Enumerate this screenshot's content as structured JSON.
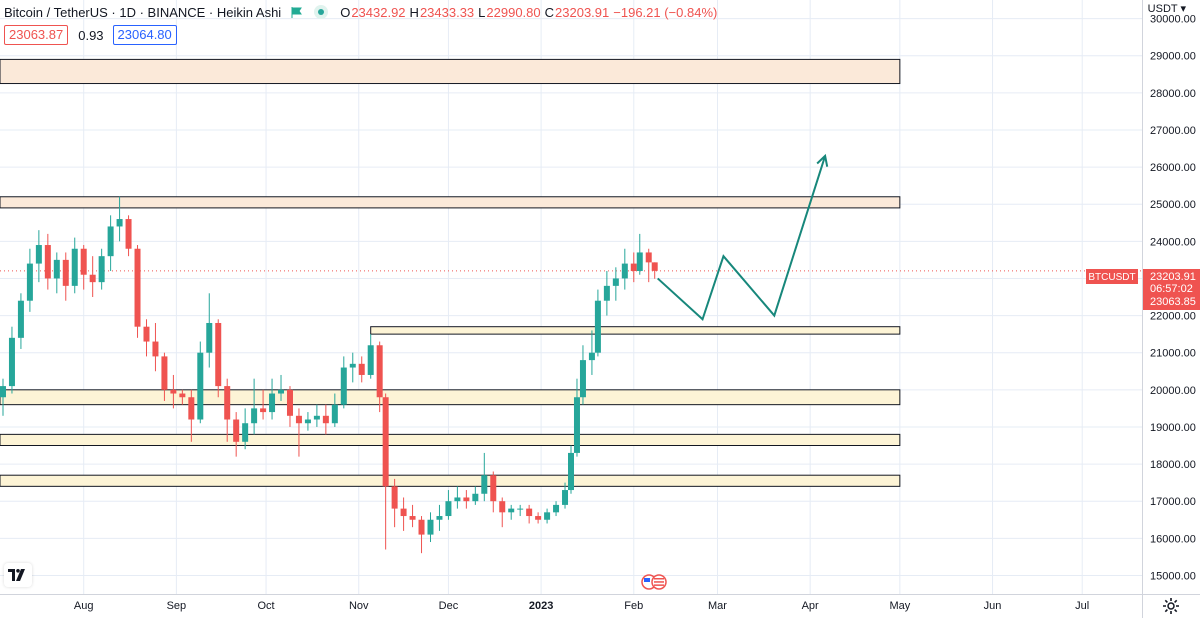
{
  "header": {
    "title": "Bitcoin / TetherUS · 1D · BINANCE · Heikin Ashi",
    "ohlc": [
      {
        "key": "O",
        "value": "23432.92"
      },
      {
        "key": "H",
        "value": "23433.33"
      },
      {
        "key": "L",
        "value": "22990.80"
      },
      {
        "key": "C",
        "value": "23203.91"
      }
    ],
    "change": "−196.21 (−0.84%)",
    "bid": "23063.87",
    "spread": "0.93",
    "ask": "23064.80"
  },
  "price_axis": {
    "currency": "USDT ▾",
    "symbol_tag": "BTCUSDT",
    "last_price": "23203.91",
    "countdown": "06:57:02",
    "second_price": "23063.85"
  },
  "colors": {
    "up": "#26a69a",
    "down": "#ef5350",
    "resistance_zone": "#fbe9d9",
    "support_zone": "#fdf4d6",
    "projection": "#17877b",
    "grid": "#e6ecf5",
    "label_bg": "#ef5350"
  },
  "icons": [
    "tradingview-logo-icon",
    "gear-icon",
    "economic-event-icon",
    "flag-icon",
    "live-dot-icon"
  ],
  "chart_data": {
    "type": "candlestick",
    "style": "Heikin Ashi",
    "symbol": "Bitcoin / TetherUS",
    "interval": "1D",
    "exchange": "BINANCE",
    "y_range": [
      14500,
      30500
    ],
    "y_ticks": [
      15000,
      16000,
      17000,
      18000,
      19000,
      20000,
      21000,
      22000,
      23000,
      24000,
      25000,
      26000,
      27000,
      28000,
      29000,
      30000
    ],
    "y_tick_labels": [
      "15000.00",
      "16000.00",
      "17000.00",
      "18000.00",
      "19000.00",
      "20000.00",
      "21000.00",
      "22000.00",
      "23000.00",
      "24000.00",
      "25000.00",
      "26000.00",
      "27000.00",
      "28000.00",
      "29000.00",
      "30000.00"
    ],
    "x_range": [
      "2022-07-04",
      "2023-07-21"
    ],
    "x_ticks": [
      {
        "date": "2022-08-01",
        "label": "Aug"
      },
      {
        "date": "2022-09-01",
        "label": "Sep"
      },
      {
        "date": "2022-10-01",
        "label": "Oct"
      },
      {
        "date": "2022-11-01",
        "label": "Nov"
      },
      {
        "date": "2022-12-01",
        "label": "Dec"
      },
      {
        "date": "2023-01-01",
        "label": "2023"
      },
      {
        "date": "2023-02-01",
        "label": "Feb"
      },
      {
        "date": "2023-03-01",
        "label": "Mar"
      },
      {
        "date": "2023-04-01",
        "label": "Apr"
      },
      {
        "date": "2023-05-01",
        "label": "May"
      },
      {
        "date": "2023-06-01",
        "label": "Jun"
      },
      {
        "date": "2023-07-01",
        "label": "Jul"
      }
    ],
    "last_price": 23203.91,
    "grid": true,
    "candles": [
      {
        "date": "2022-07-05",
        "o": 19800,
        "h": 20300,
        "l": 19300,
        "c": 20100
      },
      {
        "date": "2022-07-08",
        "o": 20100,
        "h": 21700,
        "l": 19900,
        "c": 21400
      },
      {
        "date": "2022-07-11",
        "o": 21400,
        "h": 22600,
        "l": 21100,
        "c": 22400
      },
      {
        "date": "2022-07-14",
        "o": 22400,
        "h": 23800,
        "l": 22100,
        "c": 23400
      },
      {
        "date": "2022-07-17",
        "o": 23400,
        "h": 24300,
        "l": 22900,
        "c": 23900
      },
      {
        "date": "2022-07-20",
        "o": 23900,
        "h": 24200,
        "l": 22700,
        "c": 23000
      },
      {
        "date": "2022-07-23",
        "o": 23000,
        "h": 23700,
        "l": 22600,
        "c": 23500
      },
      {
        "date": "2022-07-26",
        "o": 23500,
        "h": 23700,
        "l": 22400,
        "c": 22800
      },
      {
        "date": "2022-07-29",
        "o": 22800,
        "h": 24100,
        "l": 22600,
        "c": 23800
      },
      {
        "date": "2022-08-01",
        "o": 23800,
        "h": 23900,
        "l": 22700,
        "c": 23100
      },
      {
        "date": "2022-08-04",
        "o": 23100,
        "h": 23600,
        "l": 22500,
        "c": 22900
      },
      {
        "date": "2022-08-07",
        "o": 22900,
        "h": 23800,
        "l": 22700,
        "c": 23600
      },
      {
        "date": "2022-08-10",
        "o": 23600,
        "h": 24700,
        "l": 23200,
        "c": 24400
      },
      {
        "date": "2022-08-13",
        "o": 24400,
        "h": 25200,
        "l": 24000,
        "c": 24600
      },
      {
        "date": "2022-08-16",
        "o": 24600,
        "h": 24700,
        "l": 23600,
        "c": 23800
      },
      {
        "date": "2022-08-19",
        "o": 23800,
        "h": 23900,
        "l": 21400,
        "c": 21700
      },
      {
        "date": "2022-08-22",
        "o": 21700,
        "h": 21900,
        "l": 20900,
        "c": 21300
      },
      {
        "date": "2022-08-25",
        "o": 21300,
        "h": 21800,
        "l": 20500,
        "c": 20900
      },
      {
        "date": "2022-08-28",
        "o": 20900,
        "h": 21000,
        "l": 19700,
        "c": 20000
      },
      {
        "date": "2022-08-31",
        "o": 20000,
        "h": 20400,
        "l": 19500,
        "c": 19900
      },
      {
        "date": "2022-09-03",
        "o": 19900,
        "h": 20000,
        "l": 19600,
        "c": 19800
      },
      {
        "date": "2022-09-06",
        "o": 19800,
        "h": 20000,
        "l": 18600,
        "c": 19200
      },
      {
        "date": "2022-09-09",
        "o": 19200,
        "h": 21300,
        "l": 19100,
        "c": 21000
      },
      {
        "date": "2022-09-12",
        "o": 21000,
        "h": 22600,
        "l": 20600,
        "c": 21800
      },
      {
        "date": "2022-09-15",
        "o": 21800,
        "h": 21900,
        "l": 19800,
        "c": 20100
      },
      {
        "date": "2022-09-18",
        "o": 20100,
        "h": 20300,
        "l": 18600,
        "c": 19200
      },
      {
        "date": "2022-09-21",
        "o": 19200,
        "h": 19400,
        "l": 18200,
        "c": 18600
      },
      {
        "date": "2022-09-24",
        "o": 18600,
        "h": 19500,
        "l": 18400,
        "c": 19100
      },
      {
        "date": "2022-09-27",
        "o": 19100,
        "h": 20300,
        "l": 18800,
        "c": 19500
      },
      {
        "date": "2022-09-30",
        "o": 19500,
        "h": 20000,
        "l": 19200,
        "c": 19400
      },
      {
        "date": "2022-10-03",
        "o": 19400,
        "h": 20300,
        "l": 19200,
        "c": 19900
      },
      {
        "date": "2022-10-06",
        "o": 19900,
        "h": 20400,
        "l": 19700,
        "c": 20000
      },
      {
        "date": "2022-10-09",
        "o": 20000,
        "h": 20100,
        "l": 19000,
        "c": 19300
      },
      {
        "date": "2022-10-12",
        "o": 19300,
        "h": 19500,
        "l": 18200,
        "c": 19100
      },
      {
        "date": "2022-10-15",
        "o": 19100,
        "h": 19400,
        "l": 18900,
        "c": 19200
      },
      {
        "date": "2022-10-18",
        "o": 19200,
        "h": 19600,
        "l": 19000,
        "c": 19300
      },
      {
        "date": "2022-10-21",
        "o": 19300,
        "h": 19600,
        "l": 18800,
        "c": 19100
      },
      {
        "date": "2022-10-24",
        "o": 19100,
        "h": 19900,
        "l": 19000,
        "c": 19600
      },
      {
        "date": "2022-10-27",
        "o": 19600,
        "h": 20900,
        "l": 19500,
        "c": 20600
      },
      {
        "date": "2022-10-30",
        "o": 20600,
        "h": 21000,
        "l": 20200,
        "c": 20700
      },
      {
        "date": "2022-11-02",
        "o": 20700,
        "h": 20900,
        "l": 20200,
        "c": 20400
      },
      {
        "date": "2022-11-05",
        "o": 20400,
        "h": 21500,
        "l": 20300,
        "c": 21200
      },
      {
        "date": "2022-11-08",
        "o": 21200,
        "h": 21300,
        "l": 19400,
        "c": 19800
      },
      {
        "date": "2022-11-10",
        "o": 19800,
        "h": 19900,
        "l": 15700,
        "c": 17400
      },
      {
        "date": "2022-11-13",
        "o": 17400,
        "h": 17600,
        "l": 16300,
        "c": 16800
      },
      {
        "date": "2022-11-16",
        "o": 16800,
        "h": 17100,
        "l": 16200,
        "c": 16600
      },
      {
        "date": "2022-11-19",
        "o": 16600,
        "h": 16900,
        "l": 16300,
        "c": 16500
      },
      {
        "date": "2022-11-22",
        "o": 16500,
        "h": 16600,
        "l": 15600,
        "c": 16100
      },
      {
        "date": "2022-11-25",
        "o": 16100,
        "h": 16700,
        "l": 15900,
        "c": 16500
      },
      {
        "date": "2022-11-28",
        "o": 16500,
        "h": 16900,
        "l": 16200,
        "c": 16600
      },
      {
        "date": "2022-12-01",
        "o": 16600,
        "h": 17300,
        "l": 16500,
        "c": 17000
      },
      {
        "date": "2022-12-04",
        "o": 17000,
        "h": 17400,
        "l": 16800,
        "c": 17100
      },
      {
        "date": "2022-12-07",
        "o": 17100,
        "h": 17300,
        "l": 16800,
        "c": 17000
      },
      {
        "date": "2022-12-10",
        "o": 17000,
        "h": 17400,
        "l": 16900,
        "c": 17200
      },
      {
        "date": "2022-12-13",
        "o": 17200,
        "h": 18300,
        "l": 17000,
        "c": 17700
      },
      {
        "date": "2022-12-16",
        "o": 17700,
        "h": 17800,
        "l": 16700,
        "c": 17000
      },
      {
        "date": "2022-12-19",
        "o": 17000,
        "h": 17100,
        "l": 16300,
        "c": 16700
      },
      {
        "date": "2022-12-22",
        "o": 16700,
        "h": 16900,
        "l": 16500,
        "c": 16800
      },
      {
        "date": "2022-12-25",
        "o": 16800,
        "h": 16900,
        "l": 16600,
        "c": 16800
      },
      {
        "date": "2022-12-28",
        "o": 16800,
        "h": 16900,
        "l": 16400,
        "c": 16600
      },
      {
        "date": "2022-12-31",
        "o": 16600,
        "h": 16700,
        "l": 16400,
        "c": 16500
      },
      {
        "date": "2023-01-03",
        "o": 16500,
        "h": 16800,
        "l": 16400,
        "c": 16700
      },
      {
        "date": "2023-01-06",
        "o": 16700,
        "h": 17000,
        "l": 16600,
        "c": 16900
      },
      {
        "date": "2023-01-09",
        "o": 16900,
        "h": 17500,
        "l": 16800,
        "c": 17300
      },
      {
        "date": "2023-01-11",
        "o": 17300,
        "h": 18500,
        "l": 17200,
        "c": 18300
      },
      {
        "date": "2023-01-13",
        "o": 18300,
        "h": 20300,
        "l": 18200,
        "c": 19800
      },
      {
        "date": "2023-01-15",
        "o": 19800,
        "h": 21200,
        "l": 19600,
        "c": 20800
      },
      {
        "date": "2023-01-18",
        "o": 20800,
        "h": 21600,
        "l": 20400,
        "c": 21000
      },
      {
        "date": "2023-01-20",
        "o": 21000,
        "h": 22700,
        "l": 20900,
        "c": 22400
      },
      {
        "date": "2023-01-23",
        "o": 22400,
        "h": 23200,
        "l": 22000,
        "c": 22800
      },
      {
        "date": "2023-01-26",
        "o": 22800,
        "h": 23300,
        "l": 22400,
        "c": 23000
      },
      {
        "date": "2023-01-29",
        "o": 23000,
        "h": 23800,
        "l": 22700,
        "c": 23400
      },
      {
        "date": "2023-02-01",
        "o": 23400,
        "h": 23700,
        "l": 22900,
        "c": 23200
      },
      {
        "date": "2023-02-03",
        "o": 23200,
        "h": 24200,
        "l": 23100,
        "c": 23700
      },
      {
        "date": "2023-02-06",
        "o": 23700,
        "h": 23800,
        "l": 22900,
        "c": 23432.92
      },
      {
        "date": "2023-02-08",
        "o": 23432.92,
        "h": 23433.33,
        "l": 22990.8,
        "c": 23203.91
      }
    ],
    "zones": [
      {
        "kind": "resistance",
        "low": 28250,
        "high": 28900,
        "start": "2022-07-04",
        "end": "2023-05-01"
      },
      {
        "kind": "resistance",
        "low": 24900,
        "high": 25200,
        "start": "2022-07-04",
        "end": "2023-05-01"
      },
      {
        "kind": "support",
        "low": 21500,
        "high": 21700,
        "start": "2022-11-05",
        "end": "2023-05-01"
      },
      {
        "kind": "support",
        "low": 19600,
        "high": 20000,
        "start": "2022-07-04",
        "end": "2023-05-01"
      },
      {
        "kind": "support",
        "low": 18500,
        "high": 18800,
        "start": "2022-07-04",
        "end": "2023-05-01"
      },
      {
        "kind": "support",
        "low": 17400,
        "high": 17700,
        "start": "2022-07-04",
        "end": "2023-05-01"
      }
    ],
    "projection": [
      {
        "date": "2023-02-09",
        "price": 23000
      },
      {
        "date": "2023-02-24",
        "price": 21900
      },
      {
        "date": "2023-03-03",
        "price": 23600
      },
      {
        "date": "2023-03-20",
        "price": 22000
      },
      {
        "date": "2023-04-06",
        "price": 26300
      }
    ]
  }
}
